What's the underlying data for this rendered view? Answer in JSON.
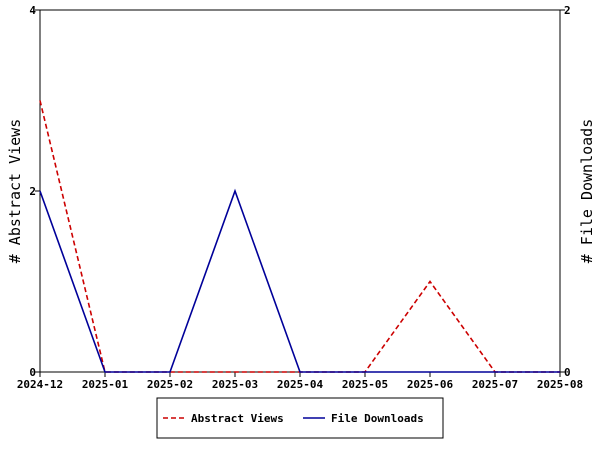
{
  "chart_data": {
    "type": "line",
    "categories": [
      "2024-12",
      "2025-01",
      "2025-02",
      "2025-03",
      "2025-04",
      "2025-05",
      "2025-06",
      "2025-07",
      "2025-08"
    ],
    "y_left": {
      "label": "# Abstract Views",
      "ylim": [
        0,
        4
      ],
      "ticks": [
        0,
        2,
        4
      ]
    },
    "y_right": {
      "label": "# File Downloads",
      "ylim": [
        0,
        2
      ],
      "ticks": [
        0,
        2
      ]
    },
    "series": [
      {
        "name": "Abstract Views",
        "axis": "left",
        "color": "#cc0000",
        "style": "dashed",
        "x": [
          "2024-12",
          "2025-01",
          "2025-02",
          "2025-03",
          "2025-04",
          "2025-05",
          "2025-06",
          "2025-07",
          "2025-08"
        ],
        "values": [
          3,
          0,
          0,
          0,
          0,
          0,
          1,
          0,
          0
        ]
      },
      {
        "name": "File Downloads",
        "axis": "right",
        "color": "#000099",
        "style": "solid",
        "x": [
          "2024-12",
          "2025-01",
          "2025-02",
          "2025-03",
          "2025-04",
          "2025-05",
          "2025-06",
          "2025-07",
          "2025-08"
        ],
        "values": [
          1,
          0,
          0,
          1,
          0,
          0,
          0,
          0,
          0
        ]
      }
    ],
    "legend": {
      "position": "bottom-center",
      "entries": [
        "Abstract Views",
        "File Downloads"
      ]
    },
    "grid": false
  }
}
